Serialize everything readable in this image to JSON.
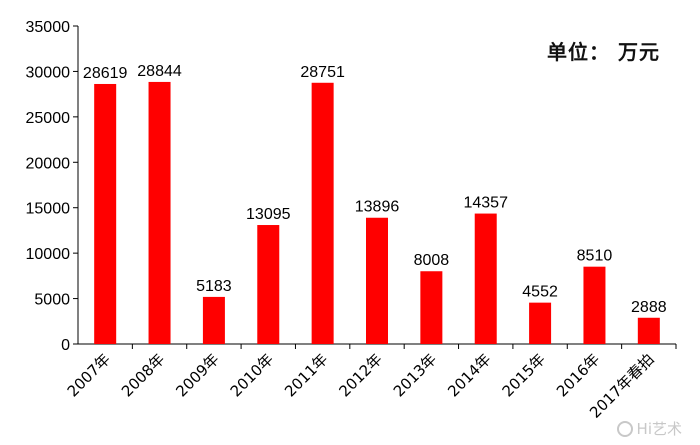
{
  "chart_data": {
    "type": "bar",
    "title": "",
    "unit_note": "单位： 万元",
    "xlabel": "",
    "ylabel": "",
    "categories": [
      "2007年",
      "2008年",
      "2009年",
      "2010年",
      "2011年",
      "2012年",
      "2013年",
      "2014年",
      "2015年",
      "2016年",
      "2017年春拍"
    ],
    "values": [
      28619,
      28844,
      5183,
      13095,
      28751,
      13896,
      8008,
      14357,
      4552,
      8510,
      2888
    ],
    "ylim": [
      0,
      35000
    ],
    "yticks": [
      0,
      5000,
      10000,
      15000,
      20000,
      25000,
      30000,
      35000
    ],
    "grid": false,
    "bar_color": "#ff0000",
    "data_labels": true
  },
  "watermark": {
    "text": "Hi艺术",
    "icon": "camera-icon"
  }
}
